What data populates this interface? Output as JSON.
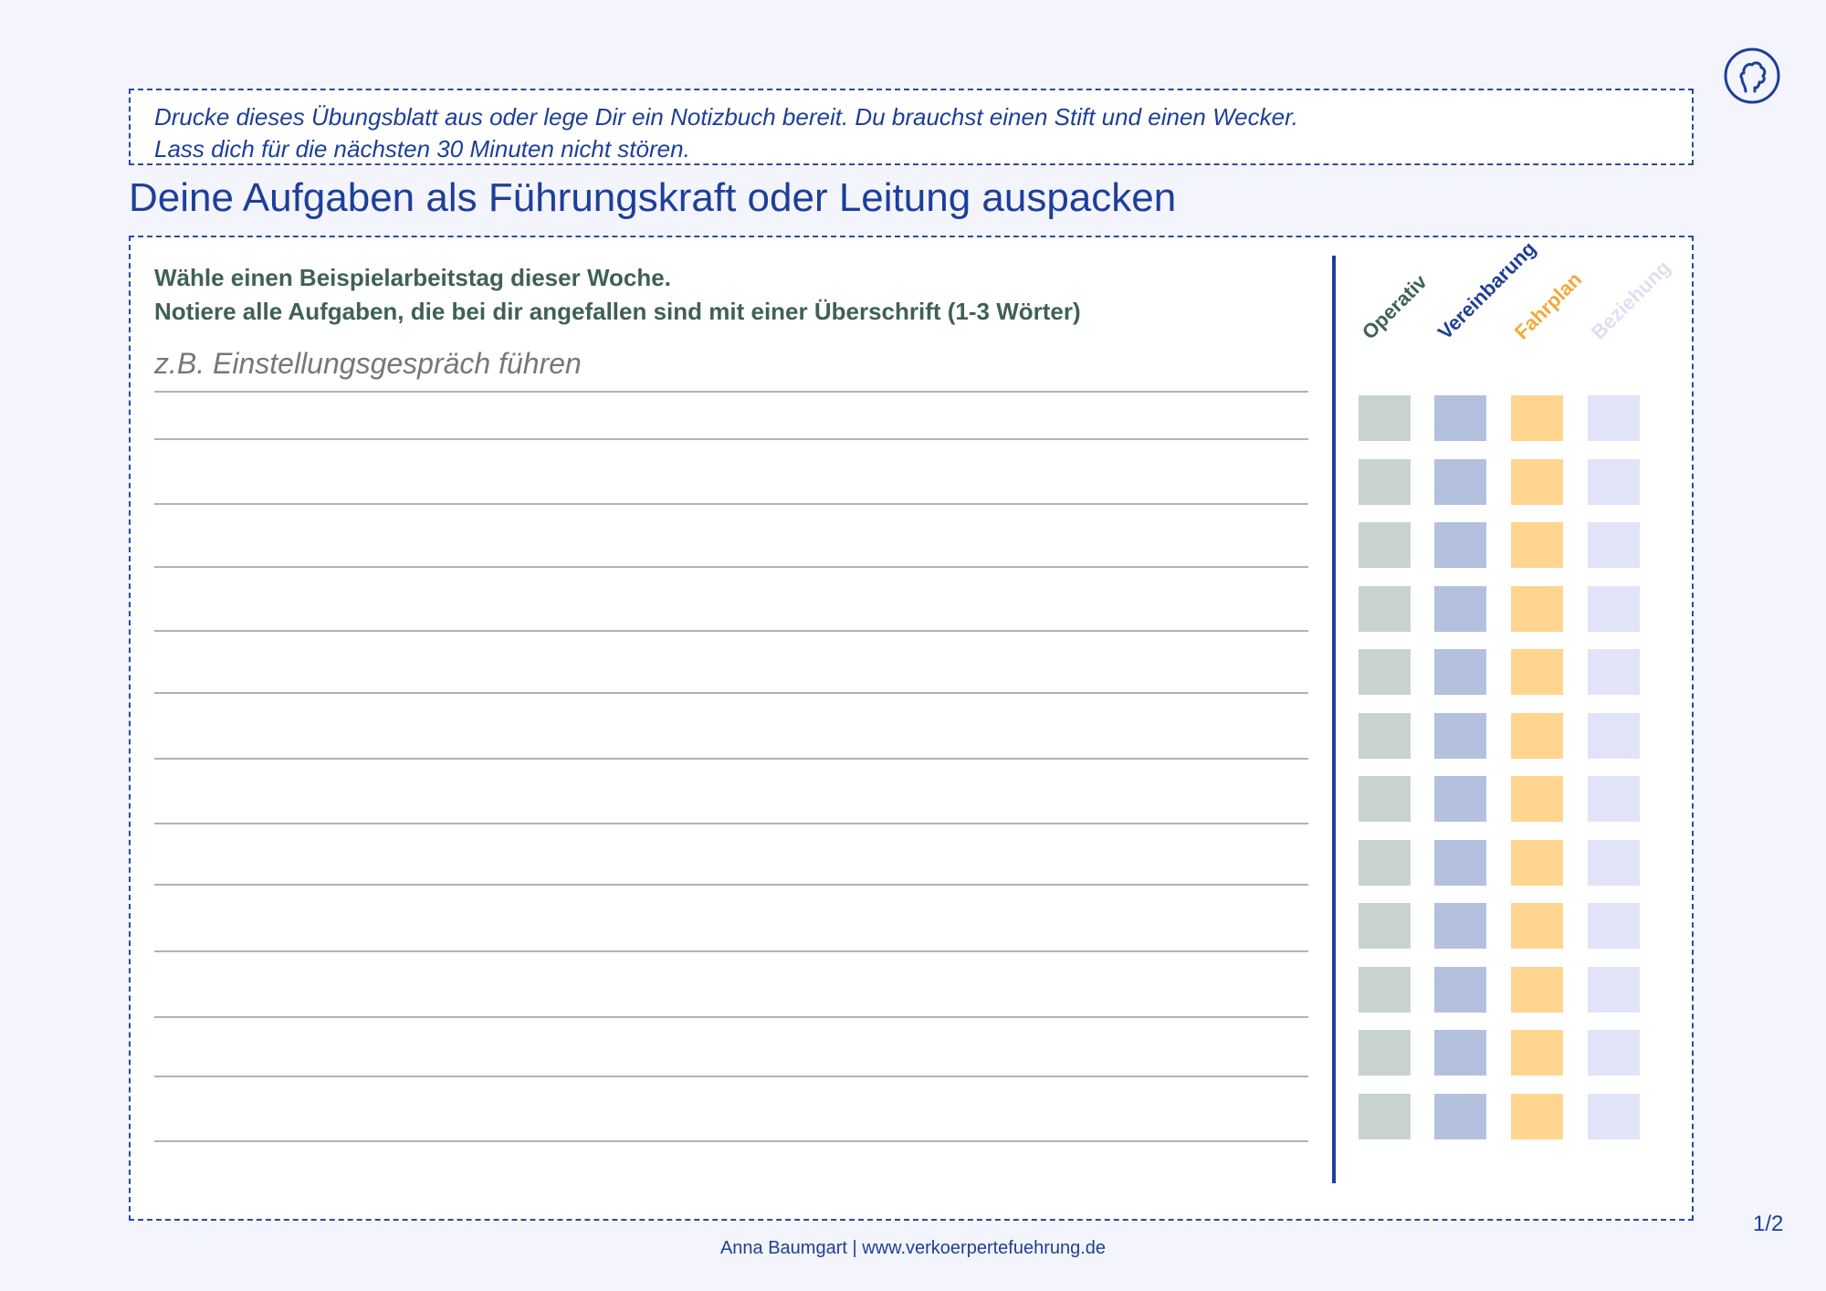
{
  "logo": {
    "icon": "head-silhouette-icon",
    "color": "#1d3f99"
  },
  "intro": {
    "line1": "Drucke dieses Übungsblatt aus oder lege Dir ein Notizbuch bereit. Du brauchst einen Stift und einen Wecker.",
    "line2": "Lass dich für die nächsten 30 Minuten nicht stören."
  },
  "title": "Deine Aufgaben als Führungskraft oder Leitung auspacken",
  "worksheet": {
    "instruction1": "Wähle einen Beispielarbeitstag dieser Woche.",
    "instruction2": "Notiere alle Aufgaben, die bei dir angefallen sind mit einer Überschrift (1-3 Wörter)",
    "example": "z.B. Einstellungsgespräch führen",
    "line_count": 12,
    "categories": [
      {
        "label": "Operativ",
        "text_color": "#3f6153",
        "box_color": "#c8d3ce"
      },
      {
        "label": "Vereinbarung",
        "text_color": "#1d3f99",
        "box_color": "#b3c1df"
      },
      {
        "label": "Fahrplan",
        "text_color": "#f2a93b",
        "box_color": "#ffd590"
      },
      {
        "label": "Beziehung",
        "text_color": "#dcdff5",
        "box_color": "#e1e3f8"
      }
    ],
    "row_count": 12
  },
  "page_number": "1/2",
  "footer": "Anna Baumgart | www.verkoerpertefuehrung.de"
}
